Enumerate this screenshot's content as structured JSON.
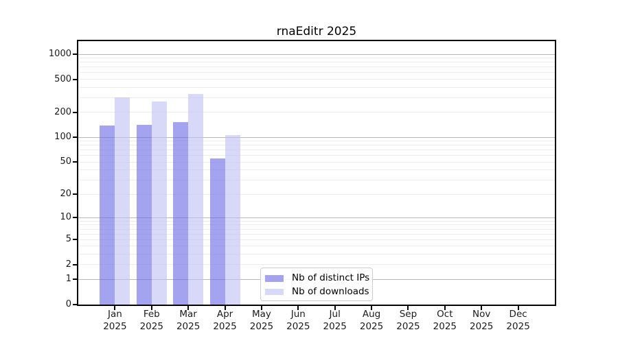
{
  "chart_data": {
    "type": "bar",
    "title": "rnaEditr 2025",
    "year_label": "2025",
    "months": [
      "Jan",
      "Feb",
      "Mar",
      "Apr",
      "May",
      "Jun",
      "Jul",
      "Aug",
      "Sep",
      "Oct",
      "Nov",
      "Dec"
    ],
    "series": [
      {
        "name": "Nb of distinct IPs",
        "values": [
          140,
          142,
          154,
          55,
          0,
          0,
          0,
          0,
          0,
          0,
          0,
          0
        ]
      },
      {
        "name": "Nb of downloads",
        "values": [
          300,
          270,
          330,
          107,
          0,
          0,
          0,
          0,
          0,
          0,
          0,
          0
        ]
      }
    ],
    "y_scale": "log10(value+1)",
    "ylim": [
      0,
      1000
    ],
    "y_ticks": [
      1000,
      500,
      200,
      100,
      50,
      20,
      10,
      5,
      2,
      1,
      0
    ],
    "grid": "on",
    "grid_major_values": [
      1,
      10,
      100,
      1000
    ],
    "grid_minor_values": [
      2,
      3,
      4,
      5,
      6,
      7,
      8,
      9,
      20,
      30,
      40,
      50,
      60,
      70,
      80,
      90,
      200,
      300,
      400,
      500,
      600,
      700,
      800,
      900
    ],
    "legend_position": "lower center inside plot"
  },
  "colors": {
    "bar_ips": "rgba(102,102,230,0.6)",
    "bar_ips_solid": "#a3a3f0",
    "bar_downloads": "rgba(190,190,243,0.6)",
    "bar_downloads_solid": "#d8d8f8",
    "grid_major": "#b8b8b8",
    "grid_minor": "#ececec",
    "axis": "#000000",
    "legend_border": "#cccccc",
    "text": "#1a1a1a"
  }
}
